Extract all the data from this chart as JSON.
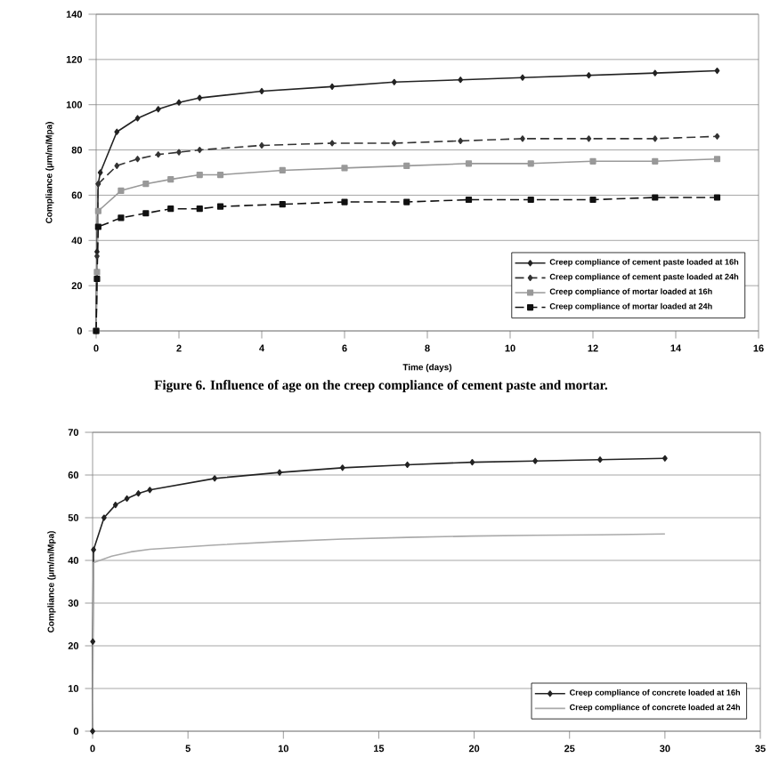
{
  "chart_data": [
    {
      "type": "line",
      "xlabel": "Time (days)",
      "ylabel": "Compliance (µm/m/Mpa)",
      "xlim": [
        0,
        16
      ],
      "xticks": [
        0,
        2,
        4,
        6,
        8,
        10,
        12,
        14,
        16
      ],
      "ylim": [
        0,
        140
      ],
      "yticks": [
        0,
        20,
        40,
        60,
        80,
        100,
        120,
        140
      ],
      "grid": "y",
      "legend": "bottom right",
      "annotations": [
        "Figure 6. Influence of age on the creep compliance of cement paste and mortar."
      ],
      "series": [
        {
          "name": "Creep compliance of cement paste loaded at 16h",
          "color": "#222222",
          "marker": "diamond",
          "line_style": "solid",
          "x": [
            0,
            0.02,
            0.05,
            0.1,
            0.5,
            1,
            1.5,
            2,
            2.5,
            4,
            5.7,
            7.2,
            8.8,
            10.3,
            11.9,
            13.5,
            15
          ],
          "values": [
            0,
            35,
            65,
            70,
            88,
            94,
            98,
            101,
            103,
            106,
            108,
            110,
            111,
            112,
            113,
            114,
            115
          ]
        },
        {
          "name": "Creep compliance of cement paste loaded at 24h",
          "color": "#333333",
          "marker": "diamond",
          "line_style": "dashed",
          "x": [
            0,
            0.02,
            0.05,
            0.5,
            1,
            1.5,
            2,
            2.5,
            4,
            5.7,
            7.2,
            8.8,
            10.3,
            11.9,
            13.5,
            15
          ],
          "values": [
            0,
            33,
            65,
            73,
            76,
            78,
            79,
            80,
            82,
            83,
            83,
            84,
            85,
            85,
            85,
            86
          ]
        },
        {
          "name": "Creep compliance of mortar loaded at 16h",
          "color": "#999999",
          "marker": "square",
          "line_style": "solid",
          "x": [
            0,
            0.02,
            0.05,
            0.6,
            1.2,
            1.8,
            2.5,
            3,
            4.5,
            6,
            7.5,
            9,
            10.5,
            12,
            13.5,
            15
          ],
          "values": [
            0,
            26,
            53,
            62,
            65,
            67,
            69,
            69,
            71,
            72,
            73,
            74,
            74,
            75,
            75,
            76
          ]
        },
        {
          "name": "Creep compliance of mortar loaded at 24h",
          "color": "#111111",
          "marker": "square",
          "line_style": "dashed",
          "x": [
            0,
            0.02,
            0.05,
            0.6,
            1.2,
            1.8,
            2.5,
            3,
            4.5,
            6,
            7.5,
            9,
            10.5,
            12,
            13.5,
            15
          ],
          "values": [
            0,
            23,
            46,
            50,
            52,
            54,
            54,
            55,
            56,
            57,
            57,
            58,
            58,
            58,
            59,
            59
          ]
        }
      ]
    },
    {
      "type": "line",
      "ylabel": "Compliance (µm/m/Mpa)",
      "xlim": [
        0,
        35
      ],
      "xticks": [
        0,
        5,
        10,
        15,
        20,
        25,
        30,
        35
      ],
      "ylim": [
        0,
        70
      ],
      "yticks": [
        0,
        10,
        20,
        30,
        40,
        50,
        60,
        70
      ],
      "grid": "y",
      "legend": "bottom right",
      "series": [
        {
          "name": "Creep compliance of concrete loaded at 16h",
          "color": "#222222",
          "marker": "diamond",
          "line_style": "solid",
          "x": [
            0,
            0.01,
            0.05,
            0.6,
            1.2,
            1.8,
            2.4,
            3,
            6.4,
            9.8,
            13.1,
            16.5,
            19.9,
            23.2,
            26.6,
            30
          ],
          "values": [
            0,
            21,
            42.5,
            50,
            53,
            54.5,
            55.7,
            56.5,
            59.2,
            60.6,
            61.7,
            62.4,
            63,
            63.3,
            63.6,
            63.9
          ]
        },
        {
          "name": "Creep compliance of concrete loaded at 24h",
          "color": "#aaaaaa",
          "marker": "none",
          "line_style": "solid",
          "x": [
            0,
            0.05,
            1,
            2,
            3,
            6.4,
            9.8,
            13.1,
            16.5,
            19.9,
            23.2,
            26.6,
            30
          ],
          "values": [
            0,
            39.5,
            41,
            42,
            42.6,
            43.6,
            44.4,
            45,
            45.4,
            45.7,
            45.9,
            46,
            46.2
          ]
        }
      ]
    }
  ]
}
